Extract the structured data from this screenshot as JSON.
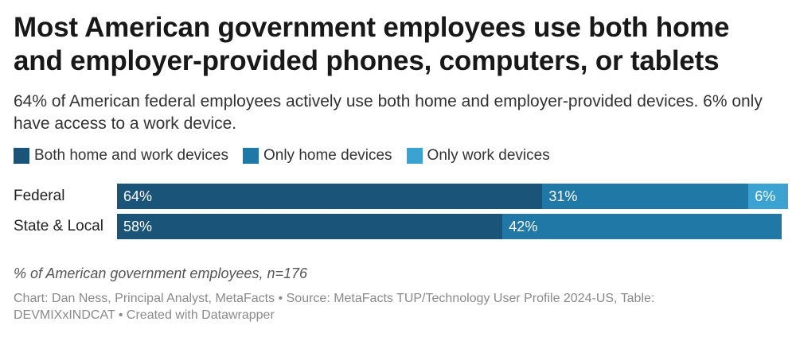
{
  "title": "Most American government employees use both home and employer-provided phones, computers, or tablets",
  "subtitle": "64% of American federal employees actively use both home and employer-provided devices. 6% only have access to a work device.",
  "notes": "% of American government employees, n=176",
  "source": "Chart: Dan Ness, Principal Analyst, MetaFacts • Source: MetaFacts TUP/Technology User Profile 2024-US, Table: DEVMIXxINDCAT • Created with Datawrapper",
  "chart_data": {
    "type": "bar",
    "stacked": true,
    "orientation": "horizontal",
    "unit": "%",
    "categories": [
      "Federal",
      "State & Local"
    ],
    "series": [
      {
        "name": "Both home and work devices",
        "values": [
          64,
          58
        ],
        "labels": [
          "64%",
          "58%"
        ],
        "color": "#1b5479"
      },
      {
        "name": "Only home devices",
        "values": [
          31,
          42
        ],
        "labels": [
          "31%",
          "42%"
        ],
        "color": "#2078a6"
      },
      {
        "name": "Only work devices",
        "values": [
          6,
          0
        ],
        "labels": [
          "6%",
          ""
        ],
        "color": "#3aa3d2"
      }
    ],
    "xlim": [
      0,
      100
    ],
    "legend_position": "top",
    "grid": false
  }
}
